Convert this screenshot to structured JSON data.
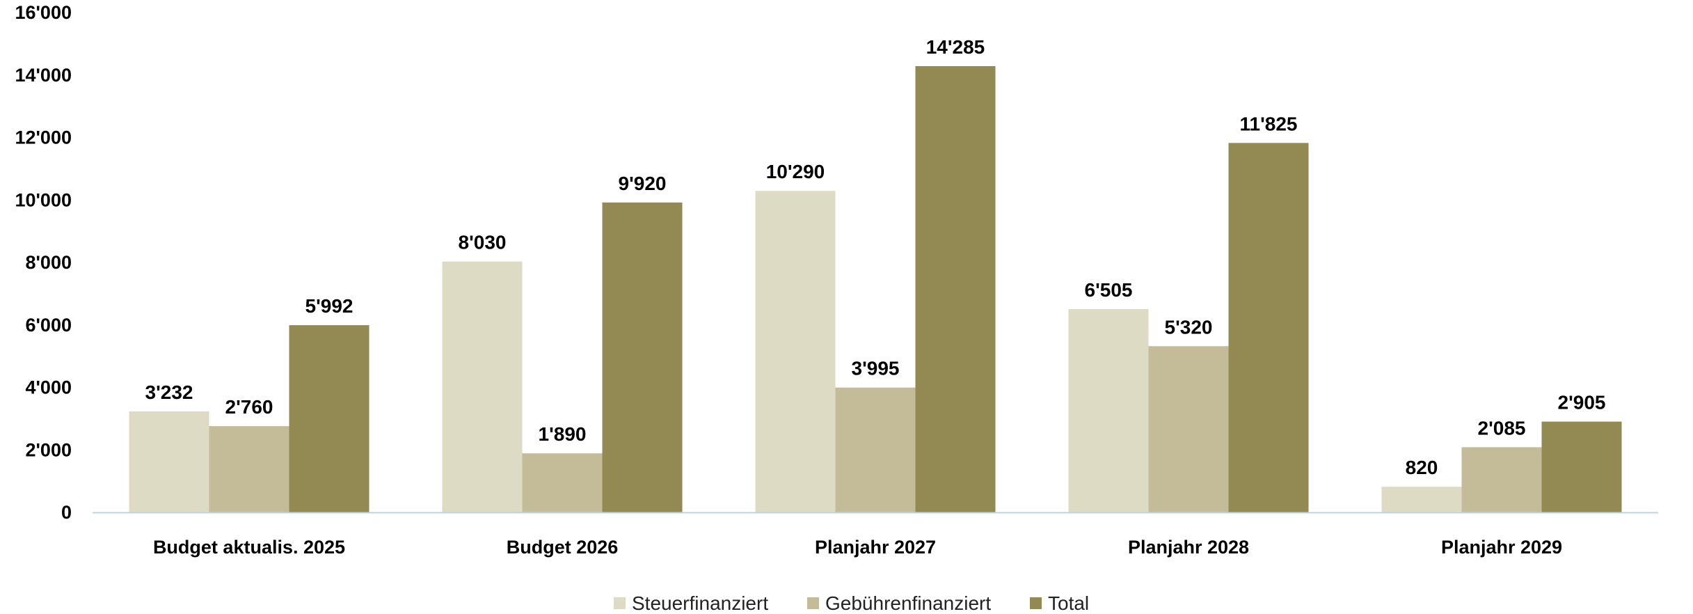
{
  "chart_data": {
    "type": "bar",
    "categories": [
      "Budget aktualis. 2025",
      "Budget 2026",
      "Planjahr 2027",
      "Planjahr 2028",
      "Planjahr 2029"
    ],
    "series": [
      {
        "name": "Steuerfinanziert",
        "color": "#dedbc5",
        "values": [
          3232,
          8030,
          10290,
          6505,
          820
        ],
        "labels": [
          "3'232",
          "8'030",
          "10'290",
          "6'505",
          "820"
        ]
      },
      {
        "name": "Gebührenfinanziert",
        "color": "#c4bc99",
        "values": [
          2760,
          1890,
          3995,
          5320,
          2085
        ],
        "labels": [
          "2'760",
          "1'890",
          "3'995",
          "5'320",
          "2'085"
        ]
      },
      {
        "name": "Total",
        "color": "#938a53",
        "values": [
          5992,
          9920,
          14285,
          11825,
          2905
        ],
        "labels": [
          "5'992",
          "9'920",
          "14'285",
          "11'825",
          "2'905"
        ]
      }
    ],
    "ylim": [
      0,
      16000
    ],
    "yticks": [
      0,
      2000,
      4000,
      6000,
      8000,
      10000,
      12000,
      14000,
      16000
    ],
    "ytick_labels": [
      "0",
      "2'000",
      "4'000",
      "6'000",
      "8'000",
      "10'000",
      "12'000",
      "14'000",
      "16'000"
    ],
    "grid": false,
    "legend_position": "bottom",
    "axis_color": "#bcd3e6"
  }
}
